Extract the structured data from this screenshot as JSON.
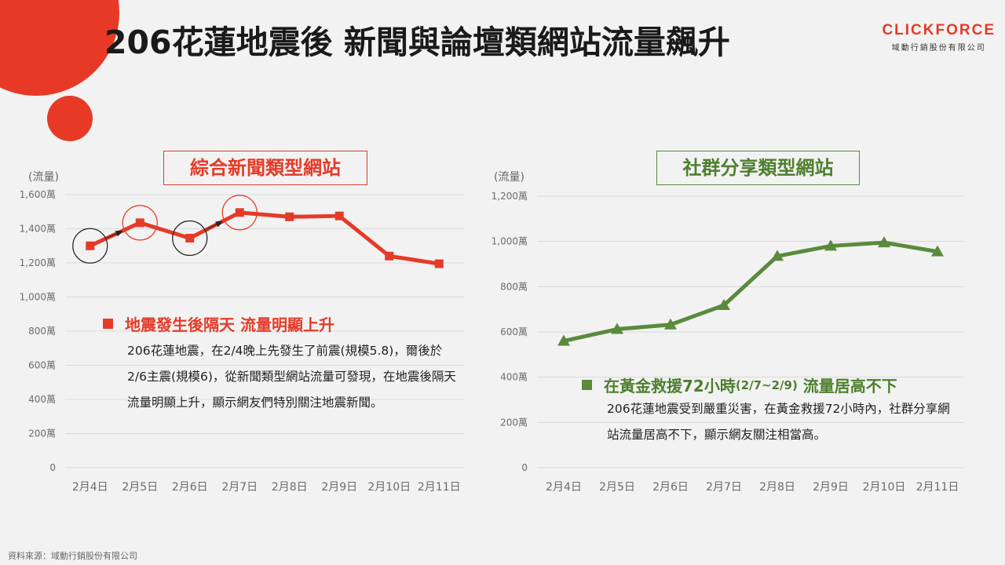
{
  "title": "206花蓮地震後 新聞與論壇類網站流量飆升",
  "brand": {
    "name": "CLICKFORCE",
    "subtitle": "域動行銷股份有限公司"
  },
  "colors": {
    "accent": "#e63a27",
    "green": "#5a8a3c"
  },
  "panels": [
    {
      "title": "綜合新聞類型網站",
      "callout": {
        "heading": "地震發生後隔天 流量明顯上升",
        "body": "206花蓮地震，在2/4晚上先發生了前震(規模5.8)，爾後於2/6主震(規模6)，從新聞類型網站流量可發現，在地震後隔天流量明顯上升，顯示網友們特別關注地震新聞。"
      }
    },
    {
      "title": "社群分享類型網站",
      "callout": {
        "heading_main": "在黃金救援72小時",
        "heading_paren": "(2/7~2/9)",
        "heading_tail": " 流量居高不下",
        "body": "206花蓮地震受到嚴重災害，在黃金救援72小時內，社群分享網站流量居高不下，顯示網友關注相當高。"
      }
    }
  ],
  "chart_data": [
    {
      "type": "line",
      "title": "綜合新聞類型網站",
      "ylabel": "(流量)",
      "categories": [
        "2月4日",
        "2月5日",
        "2月6日",
        "2月7日",
        "2月8日",
        "2月9日",
        "2月10日",
        "2月11日"
      ],
      "values": [
        1300,
        1435,
        1345,
        1495,
        1470,
        1475,
        1240,
        1195
      ],
      "yticks": [
        "0",
        "200萬",
        "400萬",
        "600萬",
        "800萬",
        "1,000萬",
        "1,200萬",
        "1,400萬",
        "1,600萬"
      ],
      "ytick_values": [
        0,
        200,
        400,
        600,
        800,
        1000,
        1200,
        1400,
        1600
      ],
      "ylim": [
        0,
        1600
      ],
      "marker": "square",
      "color": "#e63a27",
      "highlighted_points": [
        {
          "category": "2月4日",
          "color": "#222222"
        },
        {
          "category": "2月5日",
          "color": "#e63a27"
        },
        {
          "category": "2月6日",
          "color": "#222222"
        },
        {
          "category": "2月7日",
          "color": "#e63a27"
        }
      ],
      "grid": true
    },
    {
      "type": "line",
      "title": "社群分享類型網站",
      "ylabel": "(流量)",
      "categories": [
        "2月4日",
        "2月5日",
        "2月6日",
        "2月7日",
        "2月8日",
        "2月9日",
        "2月10日",
        "2月11日"
      ],
      "values": [
        560,
        612,
        632,
        718,
        935,
        980,
        995,
        955
      ],
      "yticks": [
        "0",
        "200萬",
        "400萬",
        "600萬",
        "800萬",
        "1,000萬",
        "1,200萬"
      ],
      "ytick_values": [
        0,
        200,
        400,
        600,
        800,
        1000,
        1200
      ],
      "ylim": [
        0,
        1200
      ],
      "marker": "triangle",
      "color": "#5a8a3c",
      "grid": true
    }
  ],
  "source": "資料來源：域動行銷股份有限公司"
}
